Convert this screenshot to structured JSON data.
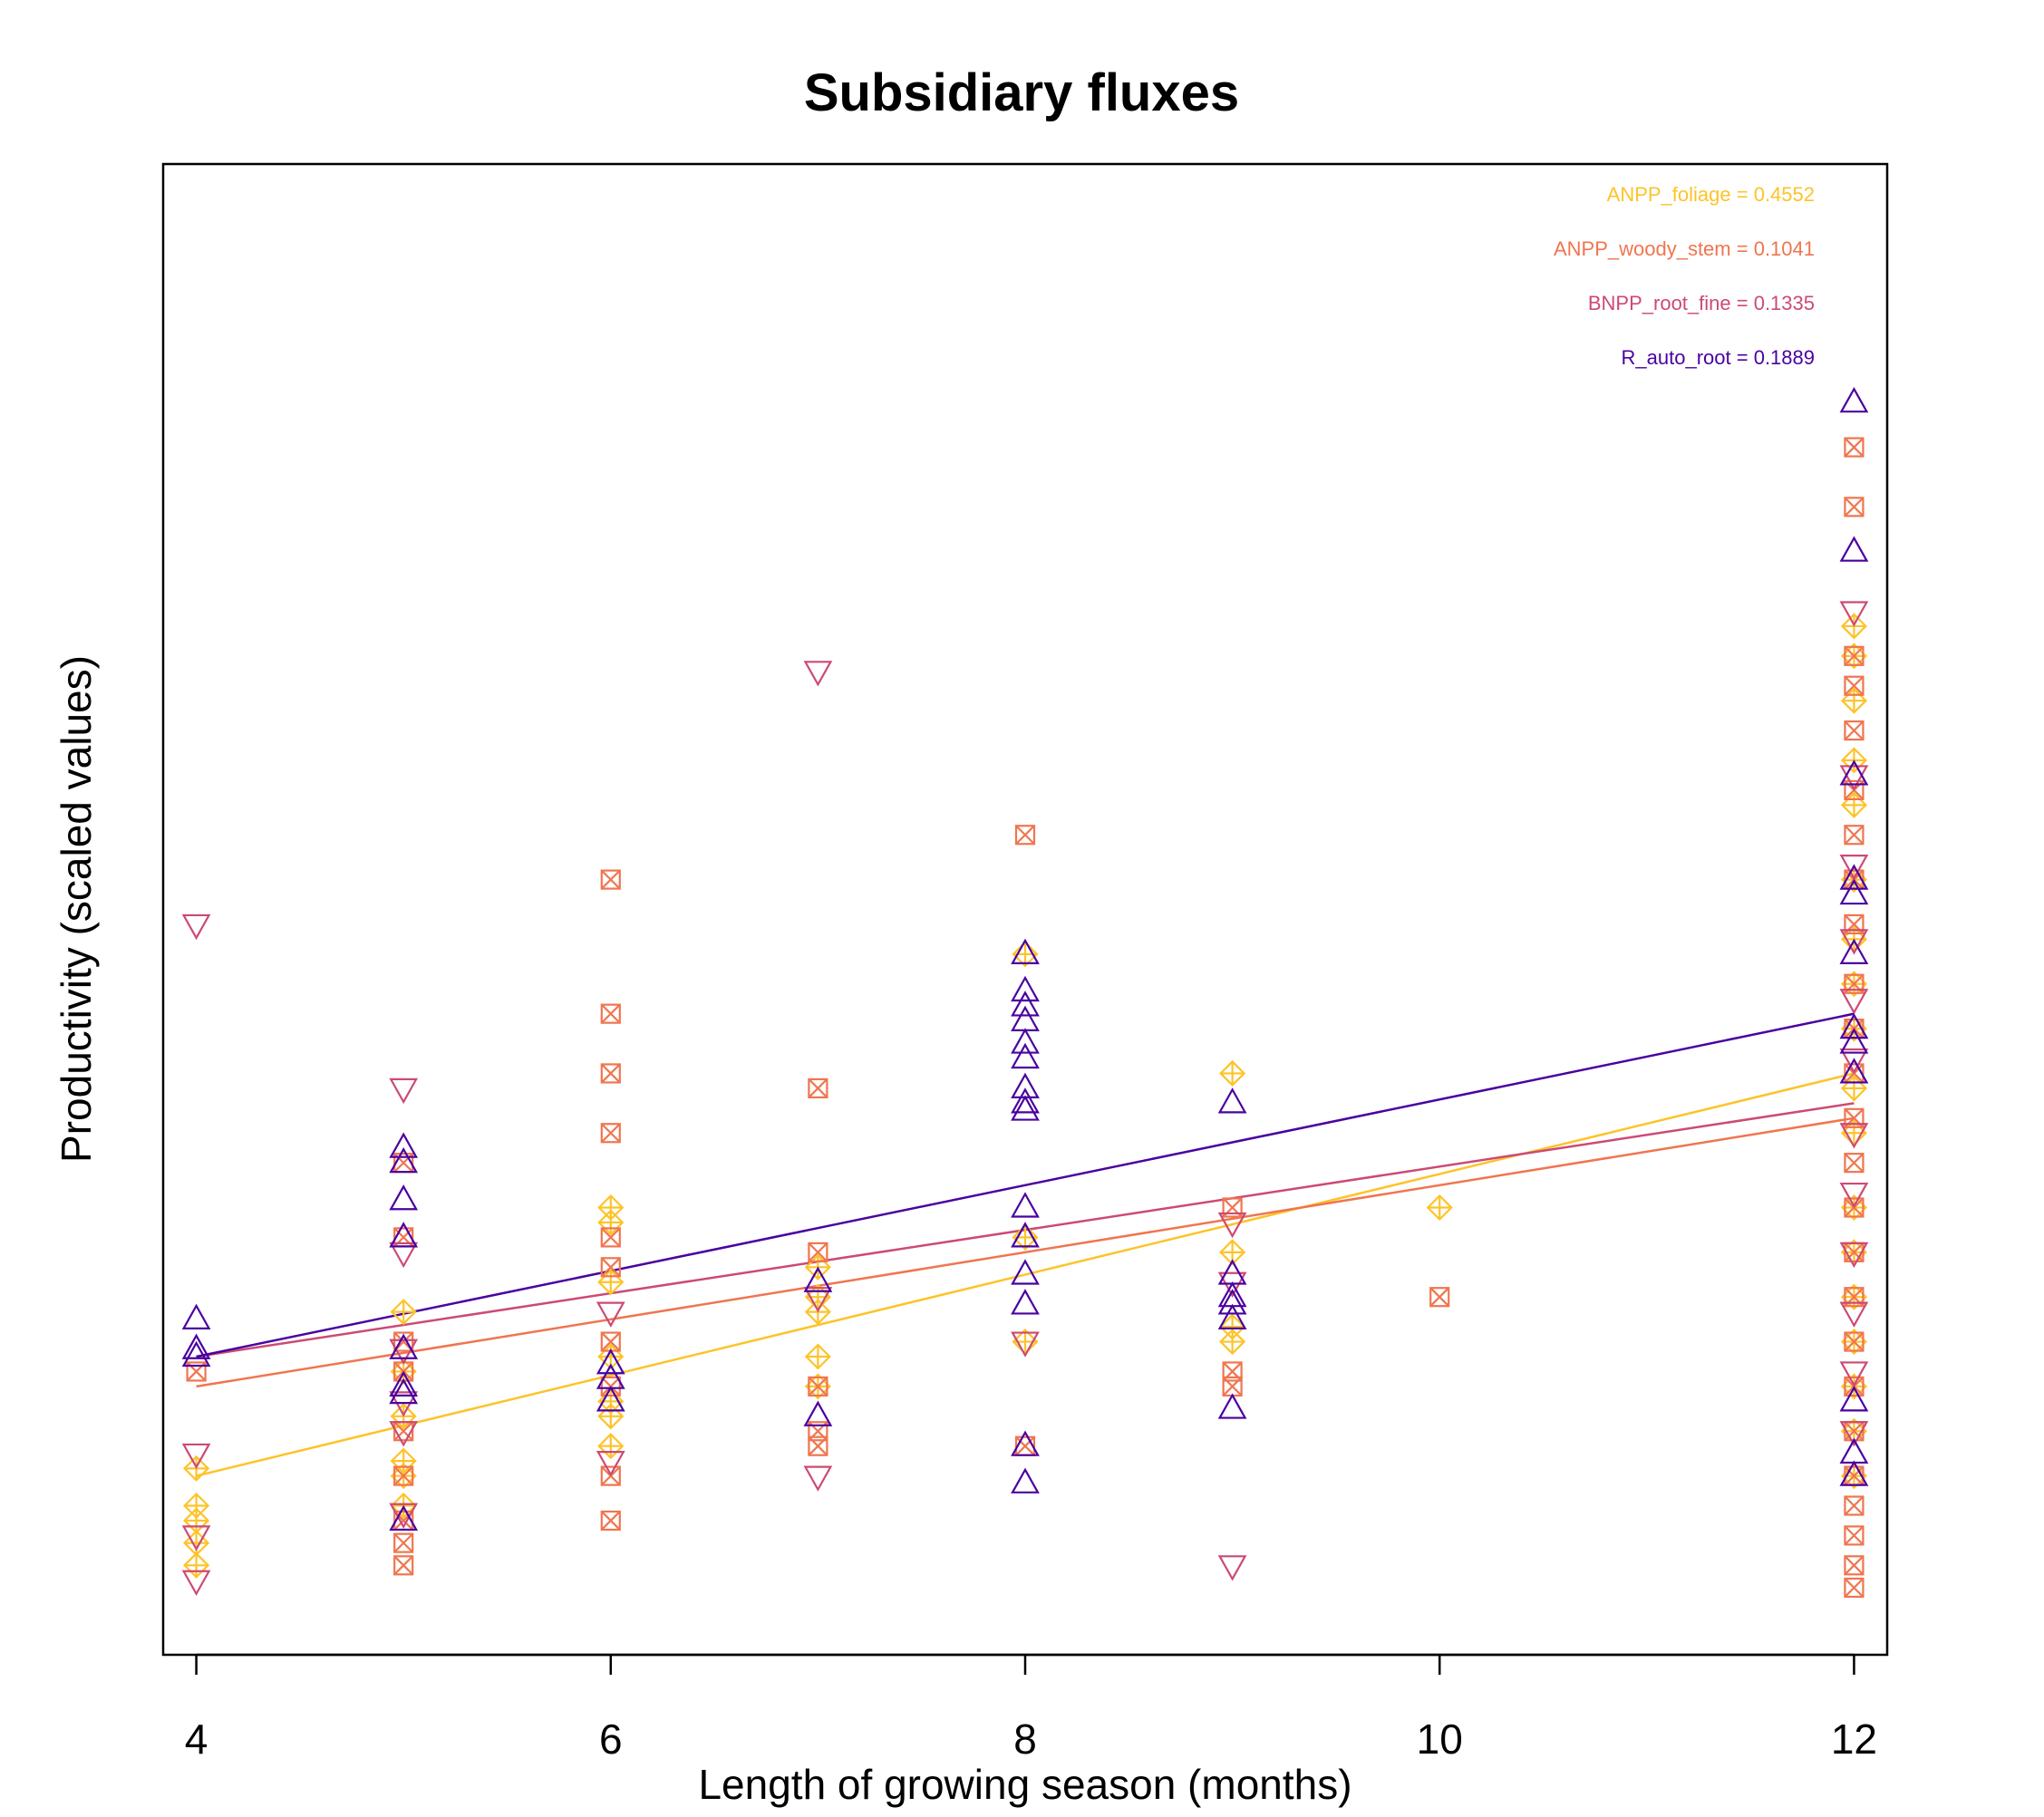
{
  "chart_data": {
    "type": "scatter",
    "title": "Subsidiary fluxes",
    "xlabel": "Length of growing season (months)",
    "ylabel": "Productivity (scaled values)",
    "xlim": [
      3.84,
      12.16
    ],
    "ylim": [
      0,
      1
    ],
    "x_ticks": [
      4,
      6,
      8,
      10,
      12
    ],
    "x_tick_labels": [
      "4",
      "6",
      "8",
      "10",
      "12"
    ],
    "y_ticks_shown": false,
    "grid": false,
    "legend_position": "top-right",
    "series": [
      {
        "name": "ANPP_foliage",
        "r2_label": "0.4552",
        "color": "#FDC328",
        "marker": "circle-plus",
        "fit": {
          "x": [
            4,
            12
          ],
          "y": [
            0.12,
            0.39
          ]
        },
        "points": [
          [
            4,
            0.125
          ],
          [
            4,
            0.1
          ],
          [
            4,
            0.09
          ],
          [
            4,
            0.075
          ],
          [
            4,
            0.06
          ],
          [
            5,
            0.23
          ],
          [
            5,
            0.19
          ],
          [
            5,
            0.16
          ],
          [
            5,
            0.13
          ],
          [
            5,
            0.12
          ],
          [
            5,
            0.1
          ],
          [
            6,
            0.3
          ],
          [
            6,
            0.29
          ],
          [
            6,
            0.25
          ],
          [
            6,
            0.2
          ],
          [
            6,
            0.17
          ],
          [
            6,
            0.16
          ],
          [
            6,
            0.14
          ],
          [
            7,
            0.26
          ],
          [
            7,
            0.24
          ],
          [
            7,
            0.23
          ],
          [
            7,
            0.2
          ],
          [
            7,
            0.18
          ],
          [
            8,
            0.47
          ],
          [
            8,
            0.28
          ],
          [
            8,
            0.21
          ],
          [
            9,
            0.39
          ],
          [
            9,
            0.27
          ],
          [
            9,
            0.22
          ],
          [
            9,
            0.21
          ],
          [
            10,
            0.3
          ],
          [
            12,
            0.69
          ],
          [
            12,
            0.67
          ],
          [
            12,
            0.64
          ],
          [
            12,
            0.6
          ],
          [
            12,
            0.57
          ],
          [
            12,
            0.52
          ],
          [
            12,
            0.48
          ],
          [
            12,
            0.45
          ],
          [
            12,
            0.42
          ],
          [
            12,
            0.38
          ],
          [
            12,
            0.35
          ],
          [
            12,
            0.3
          ],
          [
            12,
            0.27
          ],
          [
            12,
            0.24
          ],
          [
            12,
            0.21
          ],
          [
            12,
            0.18
          ],
          [
            12,
            0.15
          ],
          [
            12,
            0.12
          ]
        ]
      },
      {
        "name": "ANPP_woody_stem",
        "r2_label": "0.1041",
        "color": "#F0754F",
        "marker": "square-x",
        "fit": {
          "x": [
            4,
            12
          ],
          "y": [
            0.18,
            0.36
          ]
        },
        "points": [
          [
            4,
            0.19
          ],
          [
            5,
            0.33
          ],
          [
            5,
            0.28
          ],
          [
            5,
            0.21
          ],
          [
            5,
            0.19
          ],
          [
            5,
            0.15
          ],
          [
            5,
            0.12
          ],
          [
            5,
            0.09
          ],
          [
            5,
            0.075
          ],
          [
            5,
            0.06
          ],
          [
            6,
            0.52
          ],
          [
            6,
            0.43
          ],
          [
            6,
            0.39
          ],
          [
            6,
            0.35
          ],
          [
            6,
            0.28
          ],
          [
            6,
            0.26
          ],
          [
            6,
            0.21
          ],
          [
            6,
            0.18
          ],
          [
            6,
            0.12
          ],
          [
            6,
            0.09
          ],
          [
            7,
            0.38
          ],
          [
            7,
            0.27
          ],
          [
            7,
            0.18
          ],
          [
            7,
            0.15
          ],
          [
            7,
            0.14
          ],
          [
            8,
            0.55
          ],
          [
            8,
            0.14
          ],
          [
            9,
            0.3
          ],
          [
            9,
            0.19
          ],
          [
            9,
            0.18
          ],
          [
            10,
            0.24
          ],
          [
            12,
            0.81
          ],
          [
            12,
            0.77
          ],
          [
            12,
            0.67
          ],
          [
            12,
            0.65
          ],
          [
            12,
            0.62
          ],
          [
            12,
            0.58
          ],
          [
            12,
            0.55
          ],
          [
            12,
            0.52
          ],
          [
            12,
            0.49
          ],
          [
            12,
            0.45
          ],
          [
            12,
            0.42
          ],
          [
            12,
            0.39
          ],
          [
            12,
            0.36
          ],
          [
            12,
            0.33
          ],
          [
            12,
            0.3
          ],
          [
            12,
            0.27
          ],
          [
            12,
            0.24
          ],
          [
            12,
            0.21
          ],
          [
            12,
            0.18
          ],
          [
            12,
            0.15
          ],
          [
            12,
            0.12
          ],
          [
            12,
            0.1
          ],
          [
            12,
            0.08
          ],
          [
            12,
            0.06
          ],
          [
            12,
            0.045
          ]
        ]
      },
      {
        "name": "BNPP_root_fine",
        "r2_label": "0.1335",
        "color": "#CC4A74",
        "marker": "triangle-down",
        "fit": {
          "x": [
            4,
            12
          ],
          "y": [
            0.2,
            0.37
          ]
        },
        "points": [
          [
            4,
            0.49
          ],
          [
            4,
            0.135
          ],
          [
            4,
            0.08
          ],
          [
            4,
            0.05
          ],
          [
            5,
            0.38
          ],
          [
            5,
            0.27
          ],
          [
            5,
            0.205
          ],
          [
            5,
            0.17
          ],
          [
            5,
            0.15
          ],
          [
            5,
            0.095
          ],
          [
            6,
            0.23
          ],
          [
            6,
            0.13
          ],
          [
            7,
            0.66
          ],
          [
            7,
            0.24
          ],
          [
            7,
            0.12
          ],
          [
            8,
            0.21
          ],
          [
            9,
            0.29
          ],
          [
            9,
            0.25
          ],
          [
            9,
            0.06
          ],
          [
            12,
            0.7
          ],
          [
            12,
            0.59
          ],
          [
            12,
            0.53
          ],
          [
            12,
            0.48
          ],
          [
            12,
            0.44
          ],
          [
            12,
            0.4
          ],
          [
            12,
            0.35
          ],
          [
            12,
            0.31
          ],
          [
            12,
            0.27
          ],
          [
            12,
            0.23
          ],
          [
            12,
            0.19
          ],
          [
            12,
            0.15
          ]
        ]
      },
      {
        "name": "R_auto_root",
        "r2_label": "0.1889",
        "color": "#4A02A0",
        "marker": "triangle-up",
        "fit": {
          "x": [
            4,
            12
          ],
          "y": [
            0.2,
            0.43
          ]
        },
        "points": [
          [
            4,
            0.225
          ],
          [
            4,
            0.205
          ],
          [
            4,
            0.2
          ],
          [
            5,
            0.34
          ],
          [
            5,
            0.33
          ],
          [
            5,
            0.305
          ],
          [
            5,
            0.28
          ],
          [
            5,
            0.205
          ],
          [
            5,
            0.18
          ],
          [
            5,
            0.175
          ],
          [
            5,
            0.09
          ],
          [
            6,
            0.195
          ],
          [
            6,
            0.185
          ],
          [
            6,
            0.17
          ],
          [
            7,
            0.25
          ],
          [
            7,
            0.16
          ],
          [
            8,
            0.47
          ],
          [
            8,
            0.445
          ],
          [
            8,
            0.435
          ],
          [
            8,
            0.425
          ],
          [
            8,
            0.41
          ],
          [
            8,
            0.4
          ],
          [
            8,
            0.38
          ],
          [
            8,
            0.37
          ],
          [
            8,
            0.365
          ],
          [
            8,
            0.3
          ],
          [
            8,
            0.28
          ],
          [
            8,
            0.255
          ],
          [
            8,
            0.235
          ],
          [
            8,
            0.14
          ],
          [
            8,
            0.115
          ],
          [
            9,
            0.37
          ],
          [
            9,
            0.255
          ],
          [
            9,
            0.24
          ],
          [
            9,
            0.235
          ],
          [
            9,
            0.225
          ],
          [
            9,
            0.165
          ],
          [
            12,
            0.84
          ],
          [
            12,
            0.74
          ],
          [
            12,
            0.59
          ],
          [
            12,
            0.52
          ],
          [
            12,
            0.51
          ],
          [
            12,
            0.47
          ],
          [
            12,
            0.42
          ],
          [
            12,
            0.41
          ],
          [
            12,
            0.39
          ],
          [
            12,
            0.17
          ],
          [
            12,
            0.135
          ],
          [
            12,
            0.12
          ]
        ]
      }
    ]
  }
}
